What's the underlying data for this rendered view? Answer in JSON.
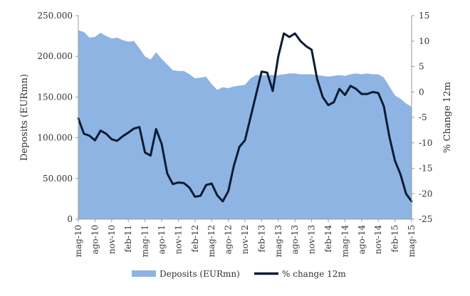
{
  "chart_data": {
    "type": "area+line",
    "title": "",
    "x": [
      "mag-10",
      "giu-10",
      "lug-10",
      "ago-10",
      "set-10",
      "ott-10",
      "nov-10",
      "dic-10",
      "gen-11",
      "feb-11",
      "mar-11",
      "apr-11",
      "mag-11",
      "giu-11",
      "lug-11",
      "ago-11",
      "set-11",
      "ott-11",
      "nov-11",
      "dic-11",
      "gen-12",
      "feb-12",
      "mar-12",
      "apr-12",
      "mag-12",
      "giu-12",
      "lug-12",
      "ago-12",
      "set-12",
      "ott-12",
      "nov-12",
      "dic-12",
      "gen-13",
      "feb-13",
      "mar-13",
      "apr-13",
      "mag-13",
      "giu-13",
      "lug-13",
      "ago-13",
      "set-13",
      "ott-13",
      "nov-13",
      "dic-13",
      "gen-14",
      "feb-14",
      "mar-14",
      "apr-14",
      "mag-14",
      "giu-14",
      "lug-14",
      "ago-14",
      "set-14",
      "ott-14",
      "nov-14",
      "dic-14",
      "gen-15",
      "feb-15",
      "mar-15",
      "apr-15",
      "mag-15"
    ],
    "x_tick_labels": [
      "mag-10",
      "ago-10",
      "nov-10",
      "feb-11",
      "mag-11",
      "ago-11",
      "nov-11",
      "feb-12",
      "mag-12",
      "ago-12",
      "nov-12",
      "feb-13",
      "mag-13",
      "ago-13",
      "nov-13",
      "feb-14",
      "mag-14",
      "ago-14",
      "nov-14",
      "feb-15",
      "mag-15"
    ],
    "series": [
      {
        "name": "Deposits (EURmn)",
        "kind": "area",
        "axis": "left",
        "color": "#8eb4e3",
        "values": [
          232000,
          230000,
          223000,
          224000,
          229000,
          225000,
          222000,
          223000,
          220000,
          218000,
          219000,
          210000,
          200000,
          196000,
          205000,
          197000,
          190000,
          183000,
          182000,
          182000,
          178000,
          173000,
          174000,
          175000,
          166000,
          159000,
          162000,
          161000,
          163000,
          164000,
          165000,
          173000,
          177000,
          177000,
          177000,
          177000,
          177000,
          178000,
          179000,
          179000,
          178000,
          178000,
          178000,
          177000,
          176000,
          175000,
          176000,
          177000,
          176000,
          178000,
          179000,
          178000,
          179000,
          178000,
          178000,
          174000,
          163000,
          152000,
          148000,
          142000,
          138000
        ]
      },
      {
        "name": "% change 12m",
        "kind": "line",
        "axis": "right",
        "color": "#0c1b33",
        "values": [
          -5.2,
          -8.2,
          -8.6,
          -9.5,
          -7.6,
          -8.2,
          -9.3,
          -9.6,
          -8.7,
          -8.0,
          -7.2,
          -6.9,
          -11.9,
          -12.5,
          -7.3,
          -10.2,
          -16.0,
          -18.1,
          -17.8,
          -17.9,
          -18.8,
          -20.6,
          -20.4,
          -18.3,
          -18.0,
          -20.3,
          -21.5,
          -19.5,
          -14.5,
          -10.8,
          -9.5,
          -5.0,
          -0.5,
          4.0,
          3.8,
          0.2,
          7.0,
          11.5,
          10.8,
          11.5,
          10.0,
          9.0,
          8.3,
          2.5,
          -1.0,
          -2.6,
          -2.0,
          0.6,
          -0.6,
          1.2,
          0.6,
          -0.4,
          -0.4,
          0.0,
          -0.2,
          -2.8,
          -8.8,
          -13.5,
          -16.2,
          -20.0,
          -21.5
        ]
      }
    ],
    "y_left": {
      "label": "Deposits (EURmn)",
      "range": [
        0,
        250000
      ],
      "ticks": [
        0,
        50000,
        100000,
        150000,
        200000,
        250000
      ],
      "tick_labels": [
        "0",
        "50.000",
        "100.000",
        "150.000",
        "200.000",
        "250.000"
      ]
    },
    "y_right": {
      "label": "% Change 12m",
      "range": [
        -25,
        15
      ],
      "ticks": [
        -25,
        -20,
        -15,
        -10,
        -5,
        0,
        5,
        10,
        15
      ],
      "tick_labels": [
        "-25",
        "-20",
        "-15",
        "-10",
        "-5",
        "0",
        "5",
        "10",
        "15"
      ]
    },
    "grid": false,
    "legend": {
      "placement": "bottom",
      "entries": [
        "Deposits (EURmn)",
        "% change 12m"
      ]
    }
  }
}
